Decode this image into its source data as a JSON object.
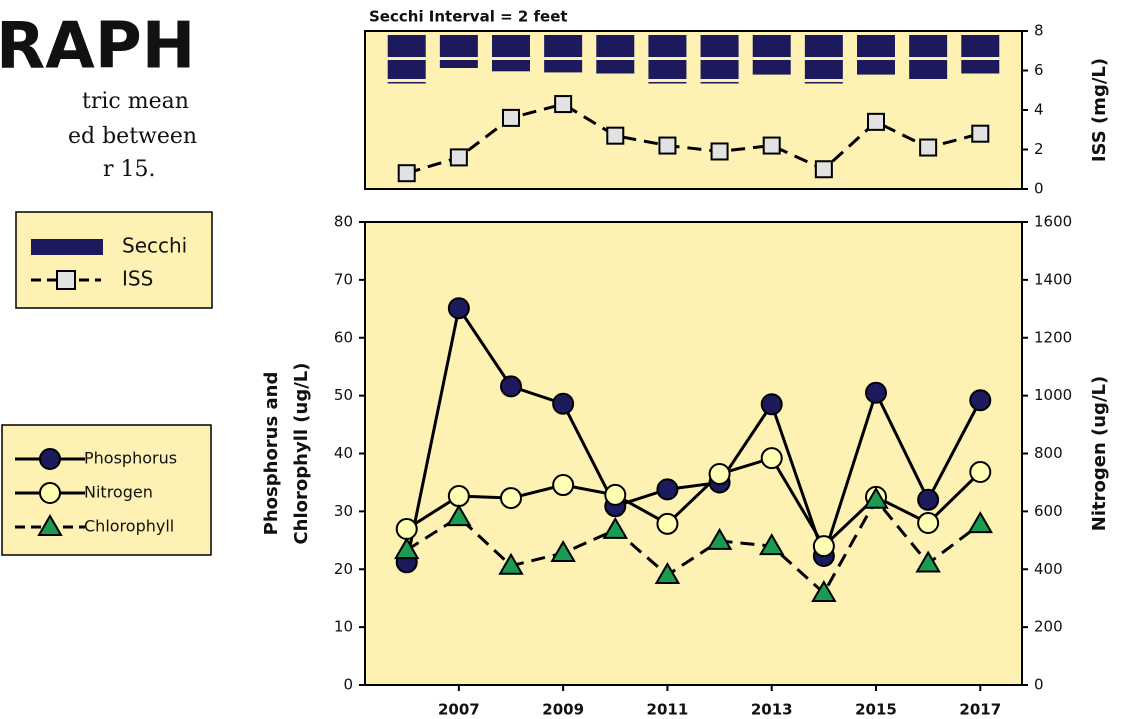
{
  "header": {
    "title": "RAPH",
    "lines": [
      "tric mean",
      "ed between",
      "r 15."
    ]
  },
  "chart_data": [
    {
      "type": "combo",
      "title": "Secchi Interval = 2 feet",
      "x": [
        2006,
        2007,
        2008,
        2009,
        2010,
        2011,
        2012,
        2013,
        2014,
        2015,
        2016,
        2017
      ],
      "xlim": [
        2005.2,
        2017.8
      ],
      "y2label": "ISS (mg/L)",
      "y2lim": [
        0,
        8
      ],
      "y2ticks": [
        0,
        2,
        4,
        6,
        8
      ],
      "series": [
        {
          "name": "Secchi",
          "mark": "bar",
          "color": "#1c1a5c",
          "values": [
            4.2,
            3.0,
            3.3,
            3.4,
            3.5,
            4.1,
            4.1,
            3.6,
            4.1,
            3.6,
            4.0,
            3.5
          ]
        },
        {
          "name": "ISS",
          "mark": "square",
          "line": "dashed",
          "color": "#e2e2e2",
          "axis": "y2",
          "values": [
            0.8,
            1.6,
            3.6,
            4.3,
            2.7,
            2.2,
            1.9,
            2.2,
            1.0,
            3.4,
            2.1,
            2.8
          ]
        }
      ]
    },
    {
      "type": "line",
      "x": [
        2006,
        2007,
        2008,
        2009,
        2010,
        2011,
        2012,
        2013,
        2014,
        2015,
        2016,
        2017
      ],
      "xlim": [
        2005.2,
        2017.8
      ],
      "xticks": [
        2007,
        2009,
        2011,
        2013,
        2015,
        2017
      ],
      "ylabel": [
        "Phosphorus and",
        "Chlorophyll (ug/L)"
      ],
      "ylim": [
        0,
        80
      ],
      "yticks": [
        0,
        10,
        20,
        30,
        40,
        50,
        60,
        70,
        80
      ],
      "y2label": "Nitrogen (ug/L)",
      "y2lim": [
        0,
        1600
      ],
      "y2ticks": [
        0,
        200,
        400,
        600,
        800,
        1000,
        1200,
        1400,
        1600
      ],
      "series": [
        {
          "name": "Phosphorus",
          "mark": "circle",
          "line": "solid",
          "color": "#1c1a5c",
          "values": [
            21.2,
            65.1,
            51.6,
            48.6,
            30.9,
            33.8,
            35.0,
            48.5,
            22.3,
            50.5,
            32.0,
            49.2
          ]
        },
        {
          "name": "Nitrogen",
          "mark": "circle",
          "line": "solid",
          "color": "#ffffb4",
          "axis": "y2",
          "values": [
            539,
            653,
            646,
            691,
            657,
            557,
            729,
            784,
            480,
            650,
            560,
            736
          ]
        },
        {
          "name": "Chlorophyll",
          "mark": "triangle",
          "line": "dashed",
          "color": "#1b9a52",
          "values": [
            23.3,
            29.0,
            20.6,
            22.8,
            26.8,
            19.0,
            24.9,
            24.0,
            15.9,
            32.0,
            21.0,
            27.8
          ]
        }
      ]
    }
  ]
}
